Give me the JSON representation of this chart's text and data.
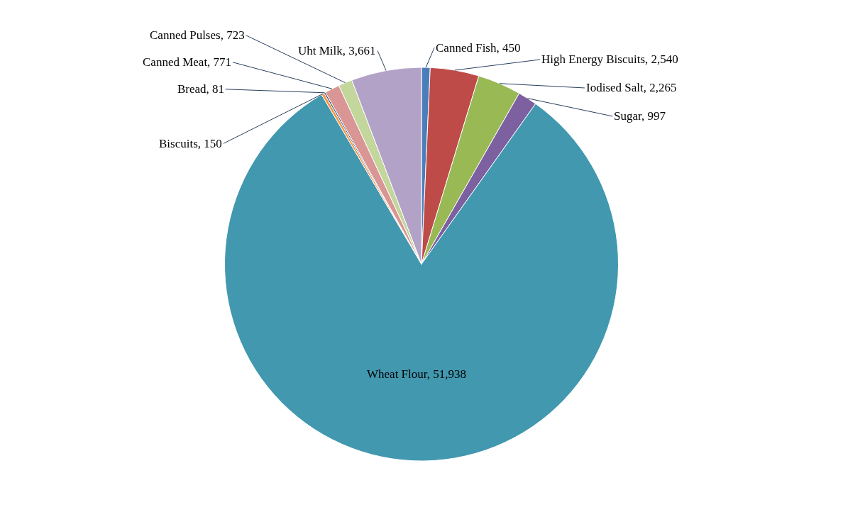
{
  "chart_data": {
    "type": "pie",
    "categories": [
      "Canned Fish",
      "High Energy Biscuits",
      "Iodised Salt",
      "Sugar",
      "Wheat Flour",
      "Biscuits",
      "Bread",
      "Canned Meat",
      "Canned Pulses",
      "Uht Milk"
    ],
    "values": [
      450,
      2540,
      2265,
      997,
      51938,
      150,
      81,
      771,
      723,
      3661
    ],
    "value_labels": [
      "450",
      "2,540",
      "2,265",
      "997",
      "51,938",
      "150",
      "81",
      "771",
      "723",
      "3,661"
    ],
    "colors": [
      "#4a7ebb",
      "#be4b48",
      "#98b954",
      "#7d60a0",
      "#4198af",
      "#f79646",
      "#2c4d75",
      "#d99694",
      "#c3d69b",
      "#b3a2c7"
    ],
    "legend": false
  }
}
